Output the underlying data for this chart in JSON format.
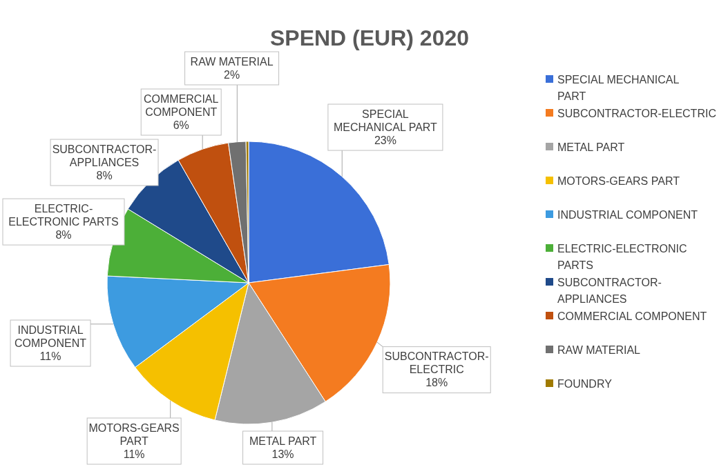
{
  "chart_data": {
    "type": "pie",
    "title": "SPEND (EUR) 2020",
    "categories": [
      "SPECIAL MECHANICAL PART",
      "SUBCONTRACTOR-ELECTRIC",
      "METAL PART",
      "MOTORS-GEARS PART",
      "INDUSTRIAL COMPONENT",
      "ELECTRIC-ELECTRONIC PARTS",
      "SUBCONTRACTOR-APPLIANCES",
      "COMMERCIAL COMPONENT",
      "RAW MATERIAL",
      "FOUNDRY"
    ],
    "values": [
      23,
      18,
      13,
      11,
      11,
      8,
      8,
      6,
      2,
      0.3
    ],
    "value_labels": [
      "23%",
      "18%",
      "13%",
      "11%",
      "11%",
      "8%",
      "8%",
      "6%",
      "2%",
      null
    ],
    "colors": [
      "#3a6fd8",
      "#f47b20",
      "#a5a5a5",
      "#f5c000",
      "#3d9be0",
      "#4caf38",
      "#1f4a8a",
      "#c0500f",
      "#707070",
      "#a07a00"
    ],
    "legend": "right"
  }
}
